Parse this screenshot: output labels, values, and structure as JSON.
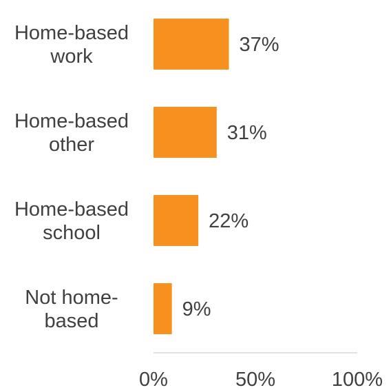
{
  "chart_data": {
    "type": "bar",
    "orientation": "horizontal",
    "categories": [
      [
        "Home-based",
        "work"
      ],
      [
        "Home-based",
        "other"
      ],
      [
        "Home-based",
        "school"
      ],
      [
        "Not home-",
        "based"
      ]
    ],
    "values": [
      37,
      31,
      22,
      9
    ],
    "value_labels": [
      "37%",
      "31%",
      "22%",
      "9%"
    ],
    "xlim": [
      0,
      100
    ],
    "x_ticks": [
      0,
      50,
      100
    ],
    "x_tick_labels": [
      "0%",
      "50%",
      "100%"
    ],
    "grid": false,
    "legend": "none",
    "bar_color": "#F7901E",
    "axis_color": "#D9D9D9",
    "text_color": "#404040"
  }
}
